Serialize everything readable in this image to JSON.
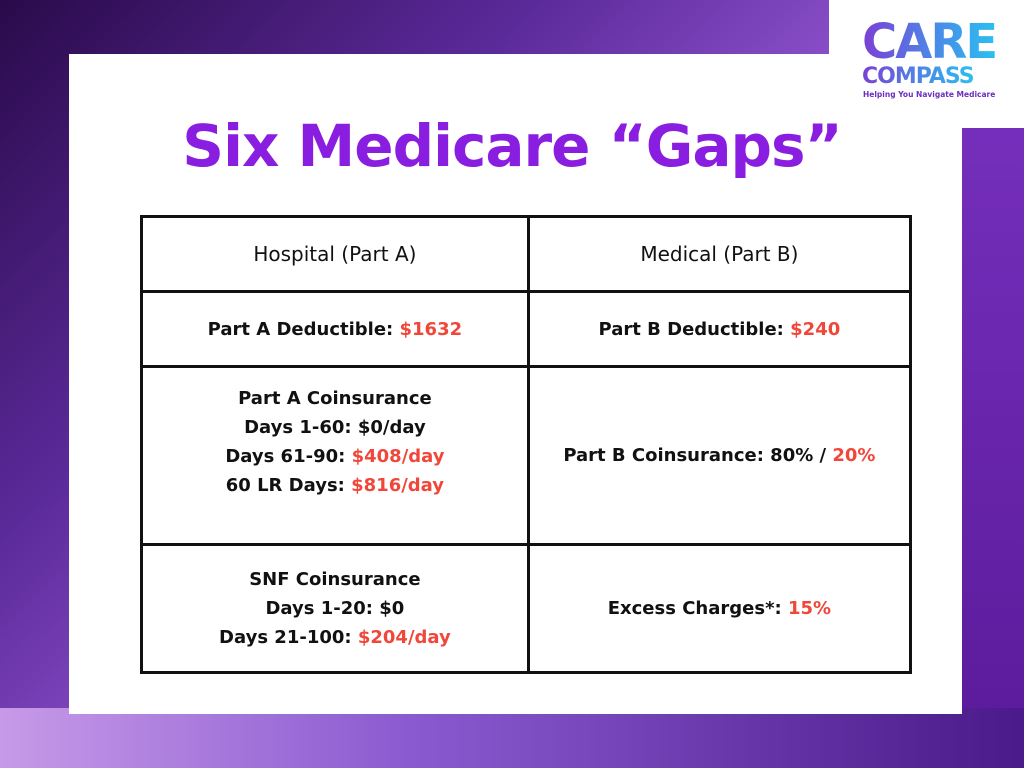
{
  "logo": {
    "line1": "CARE",
    "line2": "COMPASS",
    "tagline": "Helping You Navigate Medicare"
  },
  "title": "Six Medicare “Gaps”",
  "table": {
    "headers": [
      "Hospital (Part A)",
      "Medical (Part B)"
    ],
    "part_a": {
      "deductible_label": "Part A Deductible: ",
      "deductible_value": "$1632",
      "coinsurance_title": "Part A Coinsurance",
      "coins_days_1_60": "Days 1-60: $0/day",
      "coins_days_61_90_label": "Days 61-90: ",
      "coins_days_61_90_value": "$408/day",
      "coins_lr_label": "60 LR Days: ",
      "coins_lr_value": "$816/day",
      "snf_title": "SNF Coinsurance",
      "snf_days_1_20": "Days 1-20: $0",
      "snf_days_21_100_label": "Days 21-100: ",
      "snf_days_21_100_value": "$204/day"
    },
    "part_b": {
      "deductible_label": "Part B Deductible: ",
      "deductible_value": "$240",
      "coinsurance_label": "Part B Coinsurance: 80% / ",
      "coinsurance_value": "20%",
      "excess_label": "Excess Charges*: ",
      "excess_value": "15%"
    }
  },
  "colors": {
    "title": "#8a1ee0",
    "highlight": "#f0473a",
    "border": "#111111"
  }
}
